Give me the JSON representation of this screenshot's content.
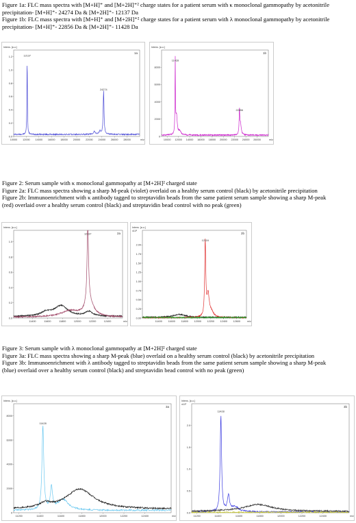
{
  "captions": {
    "fig1": [
      "Figure 1a: FLC mass spectra with [M+H]⁺ and [M+2H]⁺² charge states for a patient serum with κ monoclonal gammopathy by acetonitrile",
      "precipitation-  [M+H]⁺- 24274 Da &   [M+2H]⁺- 12137 Da",
      "Figure 1b: FLC mass spectra with [M+H]⁺ and [M+2H]⁺² charge states for a patient serum with λ monoclonal gammopathy by acetonitrile",
      "precipitation-  [M+H]⁺- 22856 Da &   [M+2H]⁺- 11428 Da"
    ],
    "fig2": [
      "Figure 2: Serum sample with κ monoclonal gammopathy at [M+2H]² charged state",
      "Figure 2a: FLC mass spectra showing a sharp M-peak (violet) overlaid on a healthy serum control (black) by acetonitrile precipitation",
      "Figure 2b: Immunoenrichment with κ antibody tagged to streptavidin beads from the same patient serum sample showing a sharp M-peak",
      "(red) overlaid over a healthy serum control (black) and streptavidin bead control with no peak (green)"
    ],
    "fig3": [
      "Figure 3: Serum sample with λ monoclonal gammopathy at [M+2H]² charged state",
      "Figure 3a: FLC mass spectra showing a sharp M-peak (blue) overlaid on a healthy serum control (black) by acetonitrile precipitation",
      "Figure 3b: Immunoenrichment with λ antibody tagged to streptavidin beads from the same patient serum sample showing a sharp M-peak",
      "(blue) overlaid over a healthy serum control (black) and streptavidin bead control with no peak (green)"
    ]
  },
  "chart_data": [
    {
      "id": "1a",
      "type": "line",
      "panel_label": "1a",
      "ylabel": "Intens. [a.u.]",
      "xunit": "m/z",
      "xlim": [
        10000,
        30000
      ],
      "ylim": [
        0,
        1.3
      ],
      "xticks": [
        "10000",
        "12000",
        "14000",
        "16000",
        "18000",
        "20000",
        "22000",
        "24000",
        "26000",
        "28000"
      ],
      "yticks": [
        "0.0",
        "0.2",
        "0.4",
        "0.6",
        "0.8",
        "1.0",
        "1.2"
      ],
      "peak_labels": [
        {
          "x": 12137,
          "y": 1.2,
          "text": "12137"
        },
        {
          "x": 24274,
          "y": 0.69,
          "text": "24274"
        }
      ],
      "series": [
        {
          "color": "#4a4ad6",
          "baseline": 0.03,
          "peaks": [
            [
              12137,
              1.18,
              45
            ],
            [
              24274,
              0.66,
              80
            ],
            [
              22800,
              0.04,
              200
            ],
            [
              23700,
              0.05,
              150
            ]
          ]
        }
      ]
    },
    {
      "id": "1b",
      "type": "line",
      "panel_label": "1b",
      "ylabel": "Intens. [a.u.]",
      "xunit": "m/z",
      "xlim": [
        9000,
        28000
      ],
      "ylim": [
        0,
        10000
      ],
      "xticks": [
        "10000",
        "12000",
        "14000",
        "16000",
        "18000",
        "20000",
        "22000",
        "24000",
        "26000"
      ],
      "yticks": [
        "0",
        "2000",
        "4000",
        "6000",
        "8000"
      ],
      "peak_labels": [
        {
          "x": 11428,
          "y": 8700,
          "text": "11428"
        },
        {
          "x": 22856,
          "y": 2950,
          "text": "22856"
        }
      ],
      "series": [
        {
          "color": "#cc22cc",
          "baseline": 150,
          "peaks": [
            [
              11428,
              8500,
              45
            ],
            [
              11650,
              2200,
              150
            ],
            [
              22856,
              2800,
              70
            ],
            [
              23050,
              1200,
              150
            ],
            [
              12200,
              400,
              300
            ]
          ]
        }
      ]
    },
    {
      "id": "2a",
      "type": "line",
      "panel_label": "2a",
      "ylabel": "Intens. [a.u.]",
      "xunit": "m/z",
      "xlim": [
        11150,
        12600
      ],
      "ylim": [
        0,
        1.15
      ],
      "xticks": [
        "11400",
        "11600",
        "11800",
        "12000",
        "12200",
        "12400"
      ],
      "yticks": [
        "0.0",
        "0.2",
        "0.4",
        "0.6",
        "0.8",
        "1.0"
      ],
      "peak_labels": [
        {
          "x": 12137,
          "y": 1.09,
          "text": "12137"
        }
      ],
      "series": [
        {
          "color": "#222222",
          "baseline": 0.02,
          "peaks": [
            [
              11780,
              0.14,
              110
            ],
            [
              11580,
              0.05,
              80
            ],
            [
              12150,
              0.06,
              60
            ]
          ]
        },
        {
          "color": "#a04868",
          "baseline": 0.01,
          "peaks": [
            [
              12137,
              1.05,
              12
            ],
            [
              12160,
              0.18,
              70
            ],
            [
              11900,
              0.08,
              150
            ]
          ]
        }
      ]
    },
    {
      "id": "2b",
      "type": "line",
      "panel_label": "2b",
      "ylabel": "Intens. [a.u.]",
      "xunit": "m/z",
      "xlim": [
        11150,
        12750
      ],
      "ylim": [
        0,
        2400000.0
      ],
      "xticks": [
        "11400",
        "11600",
        "11800",
        "12000",
        "12200",
        "12400",
        "12600"
      ],
      "yticks": [
        "0.00",
        "0.25",
        "0.50",
        "0.75",
        "1.00",
        "1.25",
        "1.50",
        "1.75",
        "2.00"
      ],
      "yexp": "x10⁶",
      "peak_labels": [
        {
          "x": 12116,
          "y": 2100000.0,
          "text": "12116"
        }
      ],
      "series": [
        {
          "color": "#222222",
          "baseline": 20000,
          "peaks": [
            [
              11720,
              80000,
              110
            ]
          ]
        },
        {
          "color": "#e03030",
          "baseline": 10000,
          "peaks": [
            [
              12116,
              2050000.0,
              10
            ],
            [
              12160,
              600000,
              20
            ],
            [
              12210,
              150000,
              40
            ]
          ]
        },
        {
          "color": "#30a030",
          "baseline": 15000,
          "peaks": []
        }
      ]
    },
    {
      "id": "3a",
      "type": "line",
      "panel_label": "3a",
      "ylabel": "Intens. [a.u.]",
      "xunit": "m/z",
      "xlim": [
        11150,
        12650
      ],
      "ylim": [
        0,
        9000
      ],
      "xticks": [
        "11200",
        "11400",
        "11600",
        "11800",
        "12000",
        "12200",
        "12400"
      ],
      "yticks": [
        "0",
        "2000",
        "4000",
        "6000",
        "8000"
      ],
      "peak_labels": [
        {
          "x": 11428,
          "y": 7300,
          "text": "11428"
        }
      ],
      "series": [
        {
          "color": "#6ac8f0",
          "baseline": 200,
          "peaks": [
            [
              11428,
              6900,
              10
            ],
            [
              11510,
              1800,
              12
            ],
            [
              11620,
              900,
              60
            ]
          ]
        },
        {
          "color": "#111111",
          "baseline": 300,
          "peaks": [
            [
              11780,
              1650,
              160
            ],
            [
              11450,
              350,
              60
            ]
          ]
        }
      ]
    },
    {
      "id": "3b",
      "type": "line",
      "panel_label": "3b",
      "ylabel": "Intens. [a.u.]",
      "xunit": "m/z",
      "xlim": [
        11150,
        12650
      ],
      "ylim": [
        0,
        2500000.0
      ],
      "xticks": [
        "11200",
        "11400",
        "11600",
        "11800",
        "12000",
        "12200",
        "12400"
      ],
      "yticks": [
        "0.0",
        "0.5",
        "1.0",
        "1.5",
        "2.0"
      ],
      "yexp": "x10⁶",
      "peak_labels": [
        {
          "x": 11428,
          "y": 2300000.0,
          "text": "11428"
        }
      ],
      "series": [
        {
          "color": "#3a3ae0",
          "baseline": 20000,
          "peaks": [
            [
              11428,
              2200000.0,
              8
            ],
            [
              11500,
              350000,
              12
            ],
            [
              11560,
              120000,
              40
            ]
          ]
        },
        {
          "color": "#333333",
          "baseline": 30000,
          "peaks": [
            [
              11780,
              160000,
              160
            ]
          ]
        },
        {
          "color": "#c8c830",
          "baseline": 10000,
          "peaks": []
        }
      ]
    }
  ]
}
